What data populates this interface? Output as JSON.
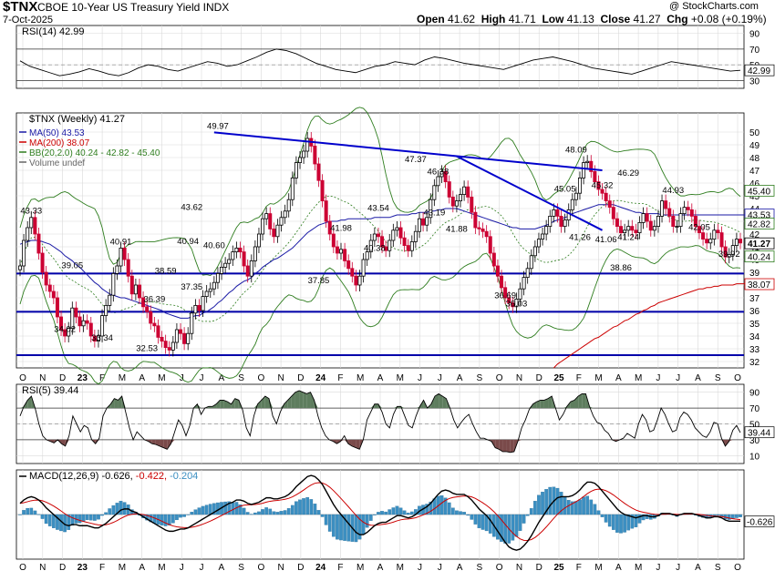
{
  "header": {
    "symbol": "$TNX",
    "name": "CBOE 10-Year US Treasury Yield INDX",
    "date": "7-Oct-2025",
    "watermark": "@ StockCharts.com",
    "open_label": "Open",
    "open": "41.62",
    "high_label": "High",
    "high": "41.71",
    "low_label": "Low",
    "low": "41.13",
    "close_label": "Close",
    "close": "41.27",
    "chg_label": "Chg",
    "chg": "+0.08 (+0.19%)"
  },
  "colors": {
    "up_candle": "#000000",
    "down_candle": "#cc0033",
    "ma50": "#1a1aa6",
    "ma200": "#cc0000",
    "bb": "#2e7d1e",
    "trendline": "#0000cc",
    "hline": "#0000aa",
    "grid": "#d9d9d9",
    "rsi_fill_high": "#5e7d5e",
    "rsi_fill_low": "#7a4a4a",
    "macd_line": "#000000",
    "macd_signal": "#cc0000",
    "macd_hist": "#3b8fc2"
  },
  "chart_data": [
    {
      "type": "line",
      "panel": "rsi14",
      "title": "RSI(14) 42.99",
      "y_ticks": [
        90,
        70,
        50,
        30
      ],
      "ylim": [
        20,
        100
      ],
      "reference_lines": [
        70,
        30
      ],
      "last_value": "42.99",
      "values": [
        55,
        48,
        44,
        40,
        36,
        38,
        41,
        45,
        42,
        38,
        36,
        40,
        46,
        50,
        48,
        44,
        42,
        46,
        50,
        54,
        52,
        48,
        50,
        55,
        60,
        66,
        70,
        68,
        64,
        58,
        52,
        48,
        44,
        42,
        40,
        44,
        48,
        50,
        54,
        52,
        50,
        56,
        60,
        58,
        55,
        52,
        50,
        48,
        46,
        44,
        48,
        52,
        56,
        58,
        60,
        57,
        54,
        50,
        46,
        44,
        42,
        40,
        38,
        42,
        46,
        50,
        54,
        52,
        50,
        48,
        46,
        44,
        42,
        43
      ]
    },
    {
      "type": "candlestick",
      "panel": "price",
      "title": "$TNX (Weekly) 41.27",
      "legend": [
        "MA(50) 43.53",
        "MA(200) 38.07",
        "BB(20,2.0) 40.24 - 42.82 - 45.40",
        "Volume undef"
      ],
      "ylim": [
        31.5,
        51.5
      ],
      "y_ticks": [
        50,
        49,
        48,
        47,
        46,
        45,
        44,
        43,
        42,
        41,
        40,
        39,
        38,
        37,
        36,
        35,
        34,
        33,
        32
      ],
      "x_ticks": [
        "O",
        "N",
        "D",
        "23",
        "F",
        "M",
        "A",
        "M",
        "J",
        "J",
        "A",
        "S",
        "O",
        "N",
        "D",
        "24",
        "F",
        "M",
        "A",
        "M",
        "J",
        "J",
        "A",
        "S",
        "O",
        "N",
        "D",
        "25",
        "F",
        "M",
        "A",
        "M",
        "J",
        "J",
        "A",
        "S",
        "O"
      ],
      "price_labels": [
        "49.97",
        "48.09",
        "47.37",
        "46.38",
        "46.29",
        "45.32",
        "45.05",
        "44.93",
        "43.62",
        "43.54",
        "43.33",
        "43.19",
        "42.05",
        "41.98",
        "41.88",
        "41.26",
        "41.24",
        "41.06",
        "40.94",
        "40.91",
        "40.60",
        "40.38",
        "39.92",
        "39.05",
        "38.86",
        "38.59",
        "37.85",
        "37.35",
        "36.69",
        "36.39",
        "36.03",
        "34.02",
        "33.34",
        "32.53"
      ],
      "right_badges": [
        "45.40",
        "43.53",
        "42.82",
        "41.27",
        "40.24",
        "38.07"
      ],
      "horizontal_lines": [
        38.9,
        35.9,
        32.5
      ],
      "trendlines": [
        {
          "from": [
            "2023-10",
            49.97
          ],
          "to": [
            "2025-10",
            47.0
          ]
        },
        {
          "from": [
            "2025-01",
            48.1
          ],
          "to": [
            "2025-10",
            42.3
          ]
        }
      ],
      "closes": [
        39.5,
        41.5,
        42.5,
        43.3,
        42.0,
        40.5,
        39.0,
        38.0,
        37.5,
        37.0,
        35.5,
        34.5,
        34.0,
        34.6,
        36.2,
        35.5,
        34.8,
        35.2,
        35.0,
        34.0,
        33.6,
        34.0,
        35.6,
        36.4,
        37.2,
        38.9,
        39.5,
        40.9,
        40.0,
        38.7,
        37.3,
        38.0,
        37.0,
        36.3,
        35.9,
        35.0,
        34.8,
        33.9,
        33.6,
        33.1,
        32.9,
        33.5,
        34.5,
        34.2,
        33.4,
        34.2,
        35.8,
        36.4,
        36.0,
        37.1,
        37.5,
        37.7,
        38.2,
        38.9,
        39.4,
        39.7,
        40.0,
        40.6,
        40.9,
        40.6,
        39.5,
        38.7,
        39.9,
        41.0,
        42.0,
        43.2,
        43.6,
        42.4,
        41.8,
        42.7,
        43.3,
        43.8,
        44.7,
        46.4,
        47.6,
        48.0,
        48.5,
        49.5,
        48.9,
        47.5,
        46.2,
        44.6,
        43.0,
        42.0,
        41.0,
        40.5,
        40.8,
        39.9,
        39.3,
        38.7,
        38.0,
        38.7,
        40.0,
        40.6,
        41.5,
        42.0,
        41.8,
        41.0,
        40.7,
        41.5,
        42.3,
        42.5,
        41.7,
        41.1,
        40.7,
        41.4,
        42.2,
        43.2,
        42.7,
        43.3,
        44.7,
        45.8,
        46.5,
        46.9,
        46.1,
        44.9,
        44.2,
        44.6,
        45.1,
        45.7,
        44.9,
        43.7,
        42.5,
        42.4,
        42.2,
        41.8,
        40.5,
        39.5,
        38.7,
        37.8,
        37.0,
        36.6,
        36.3,
        36.9,
        37.7,
        38.6,
        39.3,
        40.3,
        41.0,
        41.6,
        42.0,
        42.6,
        43.4,
        43.9,
        43.4,
        42.6,
        43.1,
        43.9,
        44.7,
        45.2,
        46.4,
        47.6,
        47.7,
        46.9,
        46.1,
        45.5,
        45.2,
        44.6,
        44.1,
        43.2,
        42.6,
        42.1,
        42.3,
        42.6,
        42.3,
        42.1,
        42.9,
        43.6,
        43.0,
        42.3,
        42.6,
        43.4,
        44.6,
        44.0,
        43.4,
        42.6,
        42.6,
        43.6,
        44.1,
        43.9,
        43.4,
        42.6,
        42.1,
        41.6,
        41.3,
        41.6,
        42.3,
        42.1,
        41.0,
        40.2,
        40.4,
        41.1,
        41.6,
        41.3
      ],
      "ma50": [
        41.2,
        41.3,
        41.4,
        41.5,
        41.5,
        41.5,
        41.4,
        41.3,
        41.2,
        41.0,
        40.8,
        40.6,
        40.3,
        40.1,
        39.9,
        39.6,
        39.4,
        39.1,
        38.8,
        38.5,
        38.2,
        38.0,
        37.7,
        37.5,
        37.3,
        37.2,
        37.1,
        37.0,
        37.0,
        36.9,
        36.8,
        36.7,
        36.6,
        36.5,
        36.4,
        36.3,
        36.2,
        36.1,
        36.0,
        35.8,
        35.7,
        35.6,
        35.5,
        35.4,
        35.4,
        35.4,
        35.5,
        35.6,
        35.6,
        35.8,
        35.9,
        36.1,
        36.3,
        36.6,
        36.8,
        37.1,
        37.4,
        37.6,
        37.9,
        38.1,
        38.3,
        38.4,
        38.6,
        38.9,
        39.1,
        39.4,
        39.6,
        39.8,
        40.0,
        40.1,
        40.3,
        40.5,
        40.7,
        40.9,
        41.2,
        41.5,
        41.8,
        42.1,
        42.3,
        42.5,
        42.7,
        42.8,
        42.9,
        43.0,
        43.0,
        43.0,
        43.1,
        43.1,
        43.2,
        43.2,
        43.2,
        43.2,
        43.2,
        43.2,
        43.2,
        43.3,
        43.3,
        43.3,
        43.3,
        43.3,
        43.4,
        43.5,
        43.5,
        43.5,
        43.5,
        43.6,
        43.6,
        43.7,
        43.7,
        43.7,
        43.8,
        43.8,
        43.9,
        43.9,
        44.0,
        44.0,
        44.0,
        44.0,
        43.9,
        43.8,
        43.7,
        43.6,
        43.5,
        43.4,
        43.3,
        43.2,
        43.1,
        43.0,
        42.9,
        42.8,
        42.7,
        42.6,
        42.5,
        42.5,
        42.4,
        42.4,
        42.4,
        42.4,
        42.4,
        42.5,
        42.6,
        42.7,
        42.8,
        43.0,
        43.1,
        43.2,
        43.3,
        43.4,
        43.6,
        43.7,
        43.8,
        43.9,
        44.0,
        44.1,
        44.2,
        44.3,
        44.3,
        44.3,
        44.3,
        44.3,
        44.2,
        44.1,
        44.0,
        43.9,
        43.8,
        43.7,
        43.7,
        43.6,
        43.6,
        43.6,
        43.6,
        43.6,
        43.5,
        43.5,
        43.5,
        43.5,
        43.5,
        43.5,
        43.5,
        43.5,
        43.5,
        43.5,
        43.5,
        43.5,
        43.5,
        43.5,
        43.5,
        43.5,
        43.5,
        43.5,
        43.5,
        43.5,
        43.5,
        43.5,
        43.5,
        43.5,
        43.5
      ],
      "ma200_start_index": 143,
      "ma200": [
        31.5,
        31.8,
        32.0,
        32.2,
        32.4,
        32.6,
        32.8,
        33.0,
        33.2,
        33.4,
        33.6,
        33.8,
        33.9,
        34.1,
        34.3,
        34.5,
        34.7,
        34.8,
        35.0,
        35.2,
        35.3,
        35.5,
        35.7,
        35.8,
        36.0,
        36.1,
        36.3,
        36.4,
        36.6,
        36.7,
        36.8,
        36.9,
        37.0,
        37.1,
        37.2,
        37.3,
        37.4,
        37.5,
        37.6,
        37.7,
        37.7,
        37.8,
        37.8,
        37.9,
        37.9,
        38.0,
        38.0,
        38.0,
        38.0,
        38.1,
        38.1,
        38.1,
        38.1,
        38.1,
        38.1,
        38.1
      ],
      "bb_upper_start": 43.0,
      "bb_lower_start": 37.0
    },
    {
      "type": "line",
      "panel": "rsi5",
      "title": "RSI(5) 39.44",
      "y_ticks": [
        90,
        70,
        50,
        30,
        10
      ],
      "ylim": [
        0,
        100
      ],
      "reference_lines": [
        70,
        30
      ],
      "last_value": "39.44",
      "values": [
        60,
        72,
        80,
        85,
        70,
        50,
        35,
        30,
        28,
        26,
        30,
        25,
        22,
        35,
        60,
        50,
        40,
        48,
        45,
        30,
        25,
        32,
        60,
        70,
        75,
        82,
        80,
        85,
        65,
        45,
        30,
        40,
        35,
        30,
        28,
        25,
        24,
        22,
        20,
        18,
        25,
        40,
        55,
        48,
        35,
        48,
        70,
        75,
        62,
        70,
        72,
        72,
        75,
        80,
        80,
        78,
        75,
        82,
        80,
        68,
        45,
        35,
        60,
        75,
        80,
        85,
        82,
        60,
        50,
        65,
        75,
        80,
        85,
        90,
        92,
        90,
        88,
        90,
        80,
        60,
        45,
        35,
        30,
        28,
        25,
        28,
        35,
        25,
        22,
        20,
        18,
        30,
        55,
        65,
        75,
        75,
        65,
        50,
        45,
        62,
        72,
        72,
        60,
        48,
        45,
        60,
        72,
        80,
        70,
        75,
        85,
        88,
        85,
        82,
        70,
        55,
        45,
        52,
        58,
        62,
        50,
        40,
        32,
        32,
        30,
        28,
        20,
        18,
        15,
        15,
        14,
        15,
        28,
        45,
        55,
        68,
        75,
        78,
        80,
        80,
        82,
        85,
        70,
        55,
        62,
        72,
        78,
        80,
        85,
        88,
        88,
        72,
        60,
        52,
        50,
        42,
        38,
        30,
        28,
        30,
        32,
        38,
        35,
        32,
        50,
        62,
        55,
        40,
        42,
        55,
        70,
        62,
        50,
        40,
        42,
        58,
        65,
        62,
        55,
        45,
        40,
        35,
        33,
        40,
        52,
        50,
        32,
        22,
        28,
        42,
        48,
        39
      ]
    },
    {
      "type": "line",
      "panel": "macd",
      "title": "MACD(12,26,9) -0.626, -0.422, -0.204",
      "series_names": [
        "MACD",
        "Signal",
        "Histogram"
      ],
      "right_badges": [
        "-0.626"
      ],
      "macd": [
        1.0,
        1.3,
        1.5,
        1.6,
        1.5,
        1.3,
        1.0,
        0.6,
        0.3,
        0.0,
        -0.3,
        -0.6,
        -0.9,
        -1.0,
        -0.9,
        -0.9,
        -1.0,
        -1.0,
        -1.0,
        -1.1,
        -1.2,
        -1.2,
        -1.0,
        -0.8,
        -0.5,
        -0.2,
        0.1,
        0.4,
        0.5,
        0.5,
        0.3,
        0.2,
        0.0,
        -0.2,
        -0.4,
        -0.6,
        -0.8,
        -1.0,
        -1.2,
        -1.4,
        -1.5,
        -1.5,
        -1.4,
        -1.3,
        -1.3,
        -1.2,
        -1.0,
        -0.8,
        -0.6,
        -0.4,
        -0.2,
        0.0,
        0.2,
        0.4,
        0.6,
        0.8,
        1.0,
        1.1,
        1.3,
        1.3,
        1.2,
        1.0,
        0.9,
        1.0,
        1.1,
        1.3,
        1.5,
        1.5,
        1.4,
        1.4,
        1.5,
        1.6,
        1.8,
        2.1,
        2.5,
        2.8,
        3.1,
        3.4,
        3.5,
        3.4,
        3.1,
        2.7,
        2.1,
        1.5,
        0.9,
        0.4,
        0.0,
        -0.4,
        -0.8,
        -1.2,
        -1.6,
        -1.8,
        -1.8,
        -1.6,
        -1.3,
        -1.0,
        -0.8,
        -0.7,
        -0.7,
        -0.5,
        -0.3,
        -0.1,
        -0.1,
        -0.2,
        -0.3,
        -0.2,
        0.0,
        0.3,
        0.5,
        0.7,
        1.0,
        1.4,
        1.8,
        2.1,
        2.2,
        2.1,
        1.9,
        1.8,
        1.8,
        1.8,
        1.6,
        1.3,
        0.9,
        0.5,
        0.2,
        -0.1,
        -0.5,
        -1.0,
        -1.5,
        -2.0,
        -2.5,
        -2.9,
        -3.1,
        -3.2,
        -3.1,
        -2.8,
        -2.4,
        -1.9,
        -1.3,
        -0.7,
        -0.2,
        0.3,
        0.8,
        1.2,
        1.5,
        1.6,
        1.6,
        1.6,
        1.7,
        1.9,
        2.2,
        2.6,
        2.9,
        2.9,
        2.8,
        2.5,
        2.1,
        1.7,
        1.3,
        0.9,
        0.5,
        0.2,
        0.0,
        -0.1,
        -0.2,
        -0.3,
        -0.2,
        -0.1,
        -0.1,
        -0.2,
        -0.2,
        -0.1,
        0.1,
        0.1,
        0.1,
        0.0,
        -0.1,
        0.0,
        0.1,
        0.1,
        0.1,
        0.0,
        -0.1,
        -0.2,
        -0.3,
        -0.3,
        -0.2,
        -0.2,
        -0.3,
        -0.5,
        -0.6,
        -0.6,
        -0.6,
        -0.6
      ]
    }
  ]
}
